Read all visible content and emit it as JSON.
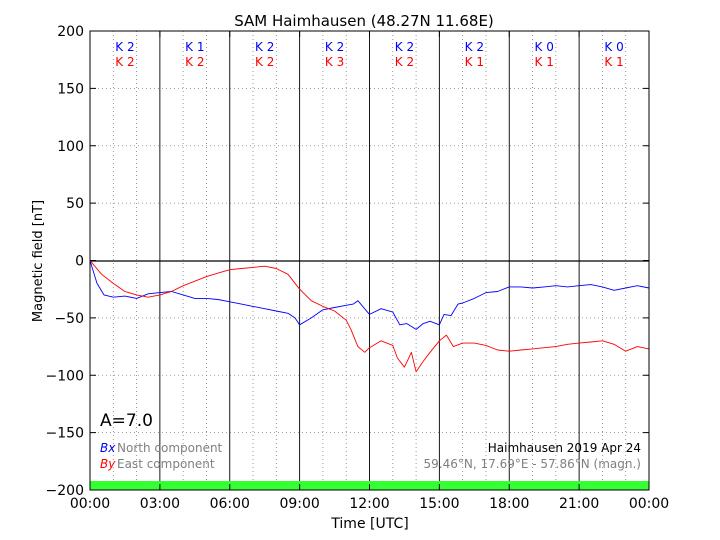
{
  "chart_data": {
    "type": "line",
    "title": "SAM Haimhausen (48.27N 11.68E)",
    "xlabel": "Time [UTC]",
    "ylabel": "Magnetic field [nT]",
    "ylim": [
      -200,
      200
    ],
    "xlim": [
      0,
      24
    ],
    "x_tick_labels": [
      "00:00",
      "03:00",
      "06:00",
      "09:00",
      "12:00",
      "15:00",
      "18:00",
      "21:00",
      "00:00"
    ],
    "y_ticks": [
      -200,
      -150,
      -100,
      -50,
      0,
      50,
      100,
      150,
      200
    ],
    "grid": true,
    "k_index": {
      "labels": [
        "K 2",
        "K 1",
        "K 2",
        "K 2",
        "K 2",
        "K 2",
        "K 0",
        "K 0"
      ],
      "labels_east": [
        "K 2",
        "K 2",
        "K 2",
        "K 3",
        "K 2",
        "K 1",
        "K 1",
        "K 1"
      ],
      "colors": {
        "north": "#0000ff",
        "east": "#ff0000"
      }
    },
    "a_index": "A=7.0",
    "legend": {
      "placement": "bottom-left",
      "north_symbol": "Bx",
      "north_label": "North component",
      "east_symbol": "By",
      "east_label": "East component"
    },
    "station_info": {
      "line1": "Haimhausen 2019 Apr 24",
      "line2": "59.46°N, 17.69°E - 57.86°N (magn.)"
    },
    "series": [
      {
        "name": "North component",
        "color": "#0000ff",
        "x": [
          0,
          0.3,
          0.6,
          1,
          1.5,
          2,
          2.5,
          3,
          3.5,
          4,
          4.5,
          5,
          5.5,
          6,
          6.5,
          7,
          7.5,
          8,
          8.5,
          8.8,
          9,
          9.5,
          10,
          10.5,
          11,
          11.3,
          11.5,
          12,
          12.5,
          13,
          13.3,
          13.6,
          14,
          14.3,
          14.6,
          15,
          15.2,
          15.5,
          15.8,
          16,
          16.5,
          17,
          17.5,
          18,
          18.5,
          19,
          19.5,
          20,
          20.5,
          21,
          21.5,
          22,
          22.5,
          23,
          23.5,
          24
        ],
        "values": [
          0,
          -20,
          -30,
          -32,
          -31,
          -33,
          -29,
          -28,
          -27,
          -30,
          -33,
          -33,
          -34,
          -36,
          -38,
          -40,
          -42,
          -44,
          -46,
          -50,
          -56,
          -50,
          -43,
          -41,
          -39,
          -38,
          -35,
          -47,
          -42,
          -45,
          -56,
          -55,
          -60,
          -55,
          -53,
          -56,
          -47,
          -48,
          -38,
          -37,
          -33,
          -28,
          -27,
          -23,
          -23,
          -24,
          -23,
          -22,
          -23,
          -22,
          -21,
          -23,
          -26,
          -24,
          -22,
          -24
        ]
      },
      {
        "name": "East component",
        "color": "#ff0000",
        "x": [
          0,
          0.5,
          1,
          1.5,
          2,
          2.5,
          3,
          3.5,
          4,
          4.5,
          5,
          5.5,
          6,
          6.5,
          7,
          7.5,
          8,
          8.5,
          9,
          9.5,
          10,
          10.5,
          11,
          11.2,
          11.5,
          11.8,
          12,
          12.5,
          13,
          13.2,
          13.5,
          13.8,
          14,
          14.3,
          14.6,
          15,
          15.3,
          15.6,
          16,
          16.5,
          17,
          17.5,
          18,
          18.5,
          19,
          19.5,
          20,
          20.5,
          21,
          21.5,
          22,
          22.5,
          23,
          23.5,
          24
        ],
        "values": [
          0,
          -12,
          -20,
          -27,
          -30,
          -32,
          -30,
          -27,
          -22,
          -18,
          -14,
          -11,
          -8,
          -7,
          -6,
          -5,
          -7,
          -12,
          -25,
          -35,
          -40,
          -44,
          -52,
          -60,
          -75,
          -80,
          -76,
          -70,
          -74,
          -85,
          -93,
          -80,
          -97,
          -88,
          -80,
          -70,
          -65,
          -75,
          -72,
          -72,
          -74,
          -78,
          -79,
          -78,
          -77,
          -76,
          -75,
          -73,
          -72,
          -71,
          -70,
          -73,
          -79,
          -75,
          -77
        ]
      }
    ]
  },
  "colors": {
    "status_bar": "#33ff33",
    "axes": "#000000",
    "grid": "#808080",
    "muted_text": "#808080"
  }
}
